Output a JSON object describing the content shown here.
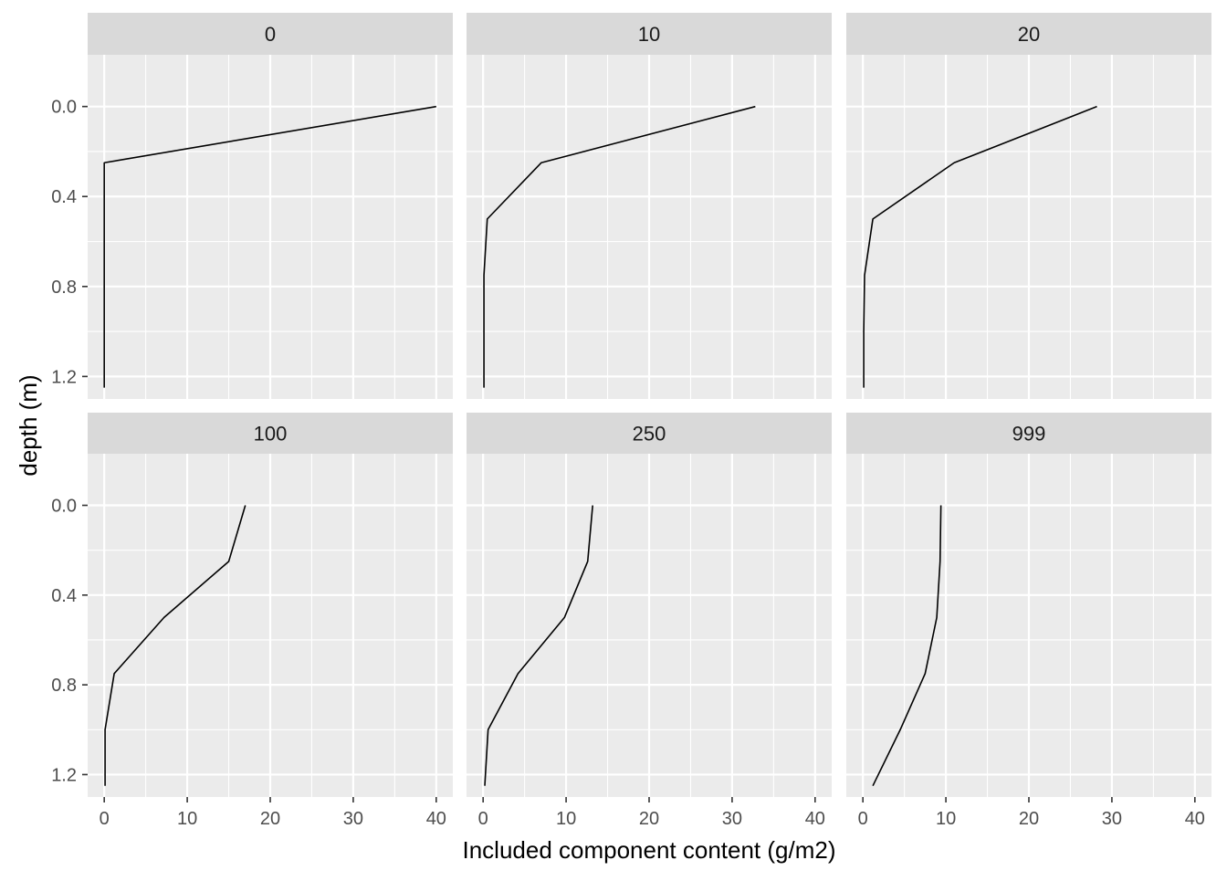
{
  "chart_data": {
    "type": "line",
    "layout": "facet-grid 2x3",
    "xlabel": "Included component content (g/m2)",
    "ylabel": "depth (m)",
    "xlim": [
      -2,
      42
    ],
    "ylim": [
      1.3,
      -0.23
    ],
    "y_reversed": true,
    "x_ticks": [
      0,
      10,
      20,
      30,
      40
    ],
    "x_tick_labels": [
      "0",
      "10",
      "20",
      "30",
      "40"
    ],
    "y_ticks": [
      0.0,
      0.4,
      0.8,
      1.2
    ],
    "y_tick_labels": [
      "0.0",
      "0.4",
      "0.8",
      "1.2"
    ],
    "grid": true,
    "panel_background": "#ebebeb",
    "strip_background": "#d9d9d9",
    "grid_color": "#ffffff",
    "line_color": "#000000",
    "panels": [
      {
        "label": "0",
        "x": [
          40,
          0,
          0,
          0,
          0,
          0
        ],
        "depth": [
          0,
          0.25,
          0.5,
          0.75,
          1.0,
          1.25
        ]
      },
      {
        "label": "10",
        "x": [
          32.8,
          7,
          0.5,
          0.1,
          0.1,
          0.1
        ],
        "depth": [
          0,
          0.25,
          0.5,
          0.75,
          1.0,
          1.25
        ]
      },
      {
        "label": "20",
        "x": [
          28.2,
          11,
          1.2,
          0.2,
          0.1,
          0.1
        ],
        "depth": [
          0,
          0.25,
          0.5,
          0.75,
          1.0,
          1.25
        ]
      },
      {
        "label": "100",
        "x": [
          17,
          15,
          7.2,
          1.2,
          0.1,
          0.1
        ],
        "depth": [
          0,
          0.25,
          0.5,
          0.75,
          1.0,
          1.25
        ]
      },
      {
        "label": "250",
        "x": [
          13.2,
          12.6,
          9.8,
          4.2,
          0.6,
          0.2
        ],
        "depth": [
          0,
          0.25,
          0.5,
          0.75,
          1.0,
          1.25
        ]
      },
      {
        "label": "999",
        "x": [
          9.4,
          9.3,
          8.9,
          7.5,
          4.5,
          1.2
        ],
        "depth": [
          0,
          0.25,
          0.5,
          0.75,
          1.0,
          1.25
        ]
      }
    ]
  }
}
